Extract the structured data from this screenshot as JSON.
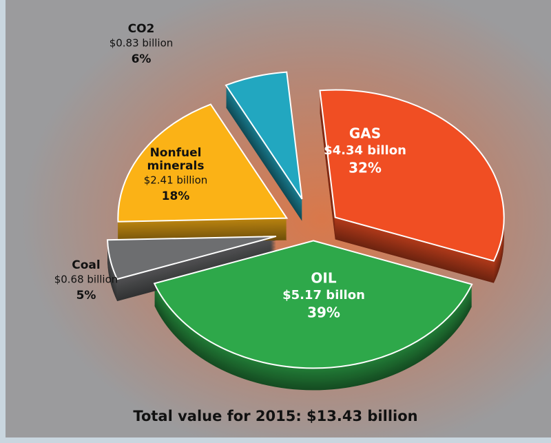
{
  "chart_data": {
    "type": "pie",
    "title": "Total value for 2015: $13.43 billion",
    "categories": [
      "OIL",
      "Coal",
      "Nonfuel minerals",
      "CO2",
      "GAS"
    ],
    "values": [
      39,
      5,
      18,
      6,
      32
    ],
    "value_labels": [
      "39%",
      "5%",
      "18%",
      "6%",
      "32%"
    ],
    "amount_labels": [
      "$5.17 billon",
      "$0.68 billion",
      "$2.41 billion",
      "$0.83 billion",
      "$4.34 billon"
    ],
    "colors": [
      "#2ea84a",
      "#6d6e70",
      "#fbb216",
      "#22a7c0",
      "#f04e23"
    ]
  }
}
